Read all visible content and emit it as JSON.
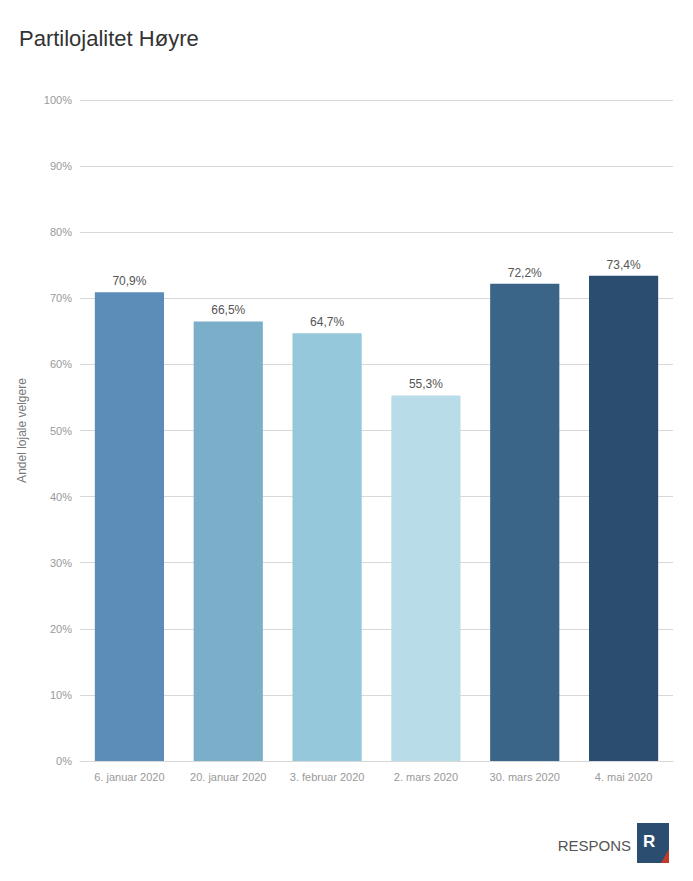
{
  "chart_data": {
    "type": "bar",
    "title": "Partilojalitet Høyre",
    "ylabel": "Andel lojale velgere",
    "categories": [
      "6. januar 2020",
      "20. januar 2020",
      "3. februar 2020",
      "2. mars 2020",
      "30. mars 2020",
      "4. mai 2020"
    ],
    "values": [
      70.9,
      66.5,
      64.7,
      55.3,
      72.2,
      73.4
    ],
    "value_labels": [
      "70,9%",
      "66,5%",
      "64,7%",
      "55,3%",
      "72,2%",
      "73,4%"
    ],
    "colors": [
      "#5b8db8",
      "#7aaec9",
      "#96c8db",
      "#b8dce8",
      "#3a6589",
      "#2b4d6f"
    ],
    "ylim": [
      0,
      100
    ],
    "yticks": [
      {
        "value": 0,
        "label": "0%"
      },
      {
        "value": 10,
        "label": "10%"
      },
      {
        "value": 20,
        "label": "20%"
      },
      {
        "value": 30,
        "label": "30%"
      },
      {
        "value": 40,
        "label": "40%"
      },
      {
        "value": 50,
        "label": "50%"
      },
      {
        "value": 60,
        "label": "60%"
      },
      {
        "value": 70,
        "label": "70%"
      },
      {
        "value": 80,
        "label": "80%"
      },
      {
        "value": 90,
        "label": "90%"
      },
      {
        "value": 100,
        "label": "100%"
      }
    ],
    "grid": true,
    "data_labels": true,
    "annotations": [
      "RESPONS",
      "R"
    ]
  }
}
